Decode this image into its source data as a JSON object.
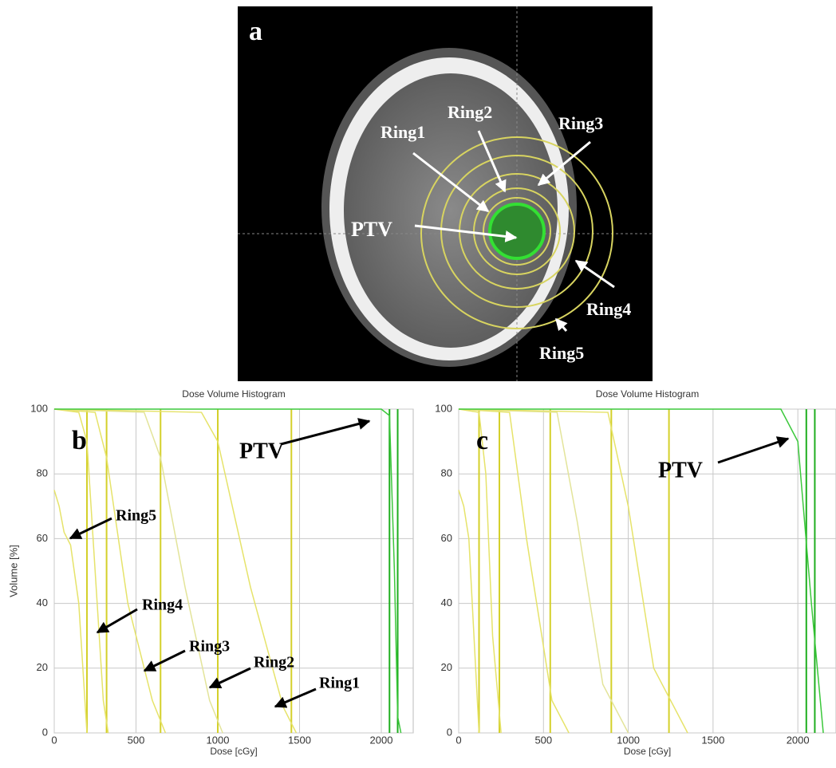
{
  "image_panel": {
    "label": "a",
    "annotations": [
      "Ring1",
      "Ring2",
      "Ring3",
      "PTV",
      "Ring4",
      "Ring5"
    ]
  },
  "chart_data": [
    {
      "type": "line",
      "panel_label": "b",
      "title": "Dose Volume Histogram",
      "xlabel": "Dose [cGy]",
      "ylabel": "Volume [%]",
      "xlim": [
        0,
        2195
      ],
      "ylim": [
        0,
        100
      ],
      "xticks": [
        0,
        500,
        1000,
        1500,
        2000
      ],
      "yticks": [
        0,
        20,
        40,
        60,
        80,
        100
      ],
      "grid": true,
      "series": [
        {
          "name": "Ring5",
          "color": "#e6e36a",
          "x": [
            0,
            30,
            60,
            100,
            150,
            200
          ],
          "values": [
            75,
            70,
            62,
            58,
            40,
            0
          ]
        },
        {
          "name": "Ring4",
          "color": "#e6e36a",
          "x": [
            0,
            150,
            200,
            250,
            300,
            330
          ],
          "values": [
            100,
            99,
            90,
            50,
            10,
            0
          ]
        },
        {
          "name": "Ring3",
          "color": "#e6e36a",
          "x": [
            0,
            250,
            320,
            450,
            600,
            680
          ],
          "values": [
            100,
            99,
            85,
            40,
            10,
            0
          ]
        },
        {
          "name": "Ring2",
          "color": "#e3e49a",
          "x": [
            0,
            550,
            650,
            800,
            950,
            1030
          ],
          "values": [
            100,
            99,
            85,
            45,
            10,
            0
          ]
        },
        {
          "name": "Ring1",
          "color": "#e6e36a",
          "x": [
            0,
            900,
            1000,
            1200,
            1400,
            1480
          ],
          "values": [
            100,
            99,
            90,
            45,
            8,
            0
          ]
        },
        {
          "name": "PTV",
          "color": "#3cc83c",
          "x": [
            0,
            2000,
            2050,
            2080,
            2100,
            2120
          ],
          "values": [
            100,
            100,
            98,
            50,
            5,
            0
          ]
        }
      ],
      "vlines": [
        200,
        320,
        650,
        1000,
        1450,
        2050,
        2100
      ],
      "vline_colors": [
        "#d4d02a",
        "#d4d02a",
        "#d4d02a",
        "#d4d02a",
        "#d4d02a",
        "#1fae1f",
        "#1fae1f"
      ]
    },
    {
      "type": "line",
      "panel_label": "c",
      "title": "Dose Volume Histogram",
      "xlabel": "Dose [cGy]",
      "xlim": [
        0,
        2225
      ],
      "ylim": [
        0,
        100
      ],
      "xticks": [
        0,
        500,
        1000,
        1500,
        2000
      ],
      "yticks": [
        0,
        20,
        40,
        60,
        80,
        100
      ],
      "grid": true,
      "series": [
        {
          "color": "#e6e36a",
          "x": [
            0,
            30,
            60,
            90,
            120
          ],
          "values": [
            75,
            70,
            60,
            30,
            0
          ]
        },
        {
          "color": "#e6e36a",
          "x": [
            0,
            120,
            160,
            200,
            250
          ],
          "values": [
            100,
            99,
            80,
            30,
            0
          ]
        },
        {
          "color": "#e6e36a",
          "x": [
            0,
            300,
            400,
            550,
            650
          ],
          "values": [
            100,
            99,
            60,
            10,
            0
          ]
        },
        {
          "color": "#e3e49a",
          "x": [
            0,
            580,
            700,
            850,
            1000
          ],
          "values": [
            100,
            99,
            65,
            15,
            0
          ]
        },
        {
          "color": "#e6e36a",
          "x": [
            0,
            880,
            1000,
            1150,
            1350
          ],
          "values": [
            100,
            99,
            70,
            20,
            0
          ]
        },
        {
          "name": "PTV",
          "color": "#3cc83c",
          "x": [
            0,
            1900,
            2000,
            2080,
            2150
          ],
          "values": [
            100,
            100,
            90,
            40,
            0
          ]
        }
      ],
      "vlines": [
        120,
        240,
        540,
        900,
        1240,
        2050,
        2100
      ],
      "vline_colors": [
        "#d4d02a",
        "#d4d02a",
        "#d4d02a",
        "#d4d02a",
        "#d4d02a",
        "#1fae1f",
        "#1fae1f"
      ]
    }
  ]
}
